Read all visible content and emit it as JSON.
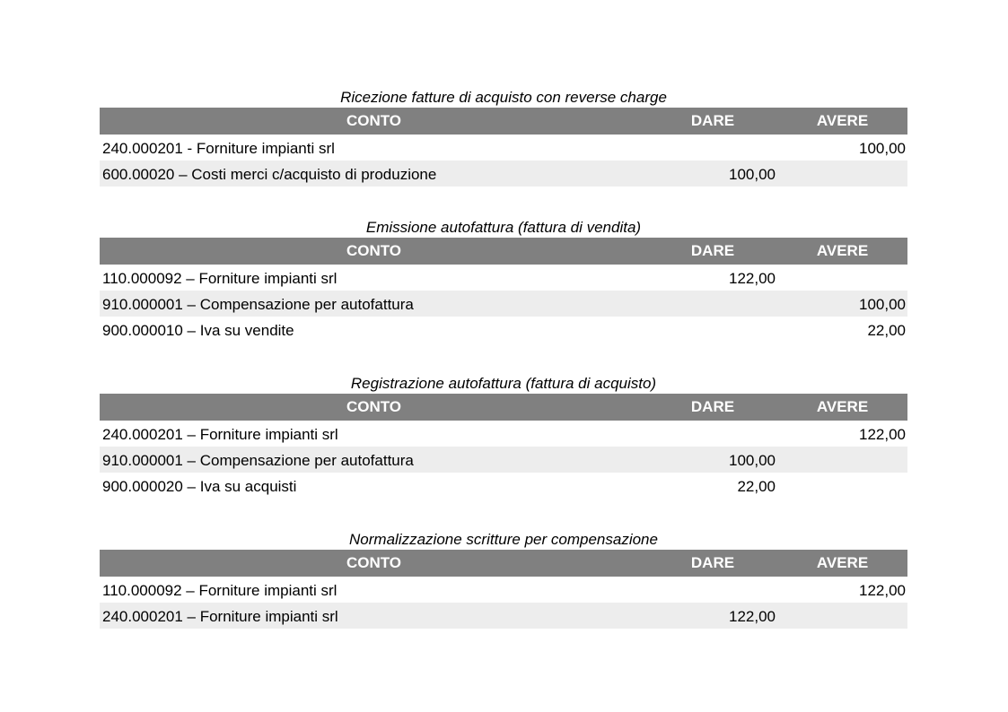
{
  "headers": {
    "conto": "CONTO",
    "dare": "DARE",
    "avere": "AVERE"
  },
  "sections": [
    {
      "title": "Ricezione fatture di acquisto con reverse charge",
      "rows": [
        {
          "conto": "240.000201 - Forniture impianti srl",
          "dare": "",
          "avere": "100,00"
        },
        {
          "conto": "600.00020 – Costi merci c/acquisto di produzione",
          "dare": "100,00",
          "avere": ""
        }
      ]
    },
    {
      "title": "Emissione autofattura (fattura di vendita)",
      "rows": [
        {
          "conto": "110.000092 – Forniture impianti srl",
          "dare": "122,00",
          "avere": ""
        },
        {
          "conto": "910.000001 – Compensazione per autofattura",
          "dare": "",
          "avere": "100,00"
        },
        {
          "conto": "900.000010 – Iva su vendite",
          "dare": "",
          "avere": "22,00"
        }
      ]
    },
    {
      "title": "Registrazione autofattura (fattura di acquisto)",
      "rows": [
        {
          "conto": "240.000201 – Forniture impianti srl",
          "dare": "",
          "avere": "122,00"
        },
        {
          "conto": "910.000001 – Compensazione per autofattura",
          "dare": "100,00",
          "avere": ""
        },
        {
          "conto": "900.000020 – Iva su acquisti",
          "dare": "22,00",
          "avere": ""
        }
      ]
    },
    {
      "title": "Normalizzazione scritture per compensazione",
      "rows": [
        {
          "conto": "110.000092 – Forniture impianti srl",
          "dare": "",
          "avere": "122,00"
        },
        {
          "conto": "240.000201 – Forniture impianti srl",
          "dare": "122,00",
          "avere": ""
        }
      ]
    }
  ]
}
